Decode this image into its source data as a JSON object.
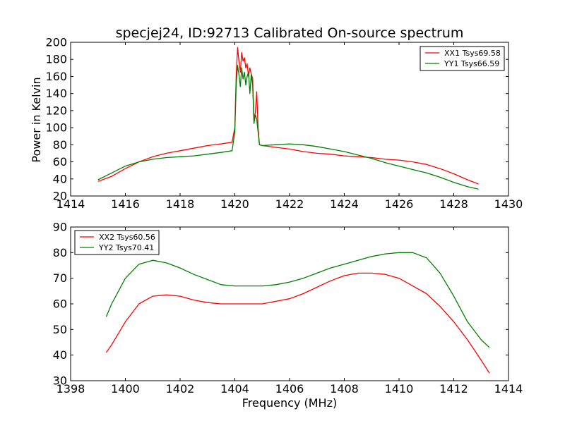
{
  "chart_data": [
    {
      "type": "line",
      "title": "specjej24, ID:92713 Calibrated On-source spectrum",
      "xlabel": "",
      "ylabel": "Power in Kelvin",
      "xlim": [
        1414,
        1430
      ],
      "ylim": [
        20,
        200
      ],
      "xticks": [
        1414,
        1416,
        1418,
        1420,
        1422,
        1424,
        1426,
        1428,
        1430
      ],
      "yticks": [
        20,
        40,
        60,
        80,
        100,
        120,
        140,
        160,
        180,
        200
      ],
      "grid": false,
      "legend_position": "top-right",
      "series": [
        {
          "name": "XX1 Tsys69.58",
          "color": "#ff0000",
          "x": [
            1415.0,
            1415.5,
            1416.0,
            1416.5,
            1417.0,
            1417.5,
            1418.0,
            1418.5,
            1419.0,
            1419.5,
            1419.9,
            1420.0,
            1420.05,
            1420.1,
            1420.15,
            1420.2,
            1420.25,
            1420.3,
            1420.35,
            1420.4,
            1420.45,
            1420.5,
            1420.55,
            1420.6,
            1420.65,
            1420.7,
            1420.75,
            1420.8,
            1420.85,
            1420.9,
            1421.0,
            1421.5,
            1422.0,
            1422.5,
            1423.0,
            1423.5,
            1424.0,
            1424.5,
            1425.0,
            1425.5,
            1426.0,
            1426.5,
            1427.0,
            1427.5,
            1428.0,
            1428.5,
            1428.9
          ],
          "y": [
            37,
            43,
            52,
            60,
            66,
            70,
            73,
            76,
            79,
            81,
            83,
            100,
            160,
            194,
            178,
            165,
            188,
            178,
            182,
            170,
            175,
            160,
            170,
            163,
            158,
            110,
            118,
            142,
            100,
            80,
            79,
            77,
            75,
            72,
            70,
            69,
            67,
            66,
            65,
            63,
            62,
            60,
            57,
            52,
            46,
            39,
            34
          ]
        },
        {
          "name": "YY1 Tsys66.59",
          "color": "#008000",
          "x": [
            1415.0,
            1415.5,
            1416.0,
            1416.5,
            1417.0,
            1417.5,
            1418.0,
            1418.5,
            1419.0,
            1419.5,
            1419.9,
            1420.0,
            1420.05,
            1420.1,
            1420.15,
            1420.2,
            1420.25,
            1420.3,
            1420.35,
            1420.4,
            1420.45,
            1420.5,
            1420.55,
            1420.6,
            1420.65,
            1420.7,
            1420.75,
            1420.8,
            1420.85,
            1420.9,
            1421.0,
            1421.5,
            1422.0,
            1422.5,
            1423.0,
            1423.5,
            1424.0,
            1424.5,
            1425.0,
            1425.5,
            1426.0,
            1426.5,
            1427.0,
            1427.5,
            1428.0,
            1428.5,
            1428.9
          ],
          "y": [
            39,
            47,
            55,
            60,
            63,
            65,
            66,
            67,
            69,
            71,
            73,
            95,
            150,
            173,
            162,
            148,
            170,
            157,
            165,
            150,
            160,
            165,
            140,
            162,
            150,
            105,
            115,
            110,
            95,
            80,
            79,
            80,
            81,
            80,
            78,
            75,
            72,
            68,
            64,
            59,
            55,
            51,
            47,
            42,
            36,
            31,
            28
          ]
        }
      ]
    },
    {
      "type": "line",
      "title": "",
      "xlabel": "Frequency (MHz)",
      "ylabel": "",
      "xlim": [
        1398,
        1414
      ],
      "ylim": [
        30,
        90
      ],
      "xticks": [
        1398,
        1400,
        1402,
        1404,
        1406,
        1408,
        1410,
        1412,
        1414
      ],
      "yticks": [
        30,
        40,
        50,
        60,
        70,
        80,
        90
      ],
      "grid": false,
      "legend_position": "top-left",
      "series": [
        {
          "name": "XX2 Tsys60.56",
          "color": "#ff0000",
          "x": [
            1399.3,
            1399.5,
            1400.0,
            1400.5,
            1401.0,
            1401.5,
            1402.0,
            1402.5,
            1403.0,
            1403.5,
            1404.0,
            1404.5,
            1405.0,
            1405.5,
            1406.0,
            1406.5,
            1407.0,
            1407.5,
            1408.0,
            1408.5,
            1409.0,
            1409.5,
            1410.0,
            1410.5,
            1411.0,
            1411.5,
            1412.0,
            1412.5,
            1413.0,
            1413.3
          ],
          "y": [
            41,
            44,
            53,
            60,
            63,
            63.5,
            63,
            61.5,
            60.5,
            60,
            60,
            60,
            60,
            61,
            62,
            64,
            66.5,
            69,
            71,
            72,
            72,
            71.5,
            70,
            67,
            64,
            59,
            53,
            46,
            38,
            33
          ]
        },
        {
          "name": "YY2 Tsys70.41",
          "color": "#008000",
          "x": [
            1399.3,
            1399.5,
            1400.0,
            1400.5,
            1401.0,
            1401.5,
            1402.0,
            1402.5,
            1403.0,
            1403.5,
            1404.0,
            1404.5,
            1405.0,
            1405.5,
            1406.0,
            1406.5,
            1407.0,
            1407.5,
            1408.0,
            1408.5,
            1409.0,
            1409.5,
            1410.0,
            1410.5,
            1411.0,
            1411.5,
            1412.0,
            1412.5,
            1413.0,
            1413.3
          ],
          "y": [
            55,
            60,
            70,
            75.5,
            77,
            76,
            74,
            71.5,
            69.5,
            67.5,
            67,
            67,
            67,
            67.5,
            68.5,
            70,
            72,
            74,
            75.5,
            77,
            78.5,
            79.5,
            80,
            80,
            78,
            72,
            63,
            53,
            46,
            43
          ]
        }
      ]
    }
  ]
}
